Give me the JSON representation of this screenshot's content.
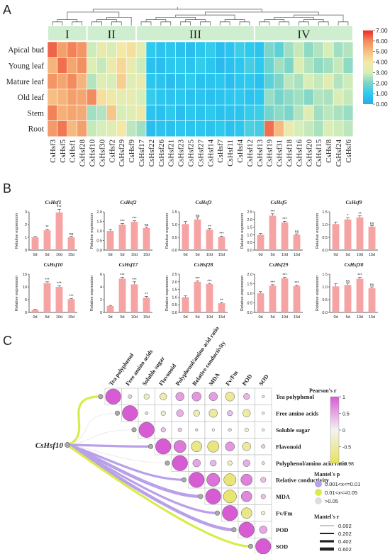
{
  "panels": {
    "a": "A",
    "b": "B",
    "c": "C"
  },
  "colors": {
    "bar": "#f6a3a3",
    "cluster_band": "#cfeecf",
    "mantel_sig1": "#b9a0e8",
    "mantel_sig2": "#d8ec4a",
    "mantel_ns": "#dddddd"
  },
  "chart_data": [
    {
      "type": "heatmap",
      "id": "heatmap",
      "cluster_labels": [
        "I",
        "II",
        "III",
        "IV"
      ],
      "cluster_sizes": [
        4,
        5,
        12,
        10
      ],
      "rows": [
        "Apical bud",
        "Young leaf",
        "Mature leaf",
        "Old leaf",
        "Stem",
        "Root"
      ],
      "columns": [
        "CsHsf3",
        "CsHsf5",
        "CsHsf1",
        "CsHsf28",
        "CsHsf10",
        "CsHsf30",
        "CsHsf2",
        "CsHsf29",
        "CsHsf9",
        "CsHsf17",
        "CsHsf22",
        "CsHsf26",
        "CsHsf21",
        "CsHsf23",
        "CsHsf25",
        "CsHsf27",
        "CsHsf14",
        "CsHsf7",
        "CsHsf11",
        "CsHsf4",
        "CsHsf12",
        "CsHsf13",
        "CsHsf19",
        "CsHsf31",
        "CsHsf18",
        "CsHsf16",
        "CsHsf20",
        "CsHsf15",
        "CsHsf8",
        "CsHsf24",
        "CsHsf6"
      ],
      "values": [
        [
          6.4,
          5.6,
          6.1,
          5.8,
          2.9,
          3.6,
          3.1,
          3.9,
          4.2,
          3.4,
          1.0,
          0.8,
          0.9,
          0.7,
          0.6,
          0.9,
          1.1,
          0.6,
          0.8,
          1.2,
          1.0,
          0.8,
          2.0,
          1.6,
          2.4,
          2.8,
          2.2,
          2.6,
          3.0,
          2.4,
          2.6
        ],
        [
          5.2,
          6.3,
          5.5,
          5.9,
          3.2,
          2.8,
          3.7,
          4.4,
          3.6,
          2.9,
          0.7,
          0.6,
          0.9,
          1.0,
          0.8,
          1.1,
          0.9,
          0.5,
          0.7,
          0.9,
          1.3,
          1.0,
          1.8,
          2.4,
          2.0,
          3.1,
          2.6,
          2.2,
          2.4,
          2.8,
          2.2
        ],
        [
          5.8,
          5.5,
          6.0,
          5.2,
          2.6,
          3.3,
          3.0,
          4.6,
          3.2,
          3.6,
          0.9,
          0.8,
          0.6,
          0.8,
          1.0,
          0.7,
          0.8,
          0.9,
          0.6,
          0.9,
          1.0,
          0.7,
          1.6,
          2.0,
          2.7,
          2.5,
          3.0,
          2.8,
          3.3,
          2.6,
          2.9
        ],
        [
          5.0,
          5.2,
          5.6,
          5.5,
          6.0,
          4.2,
          3.8,
          3.4,
          3.5,
          3.0,
          1.1,
          0.9,
          0.8,
          0.9,
          0.7,
          0.8,
          0.7,
          0.8,
          0.9,
          1.0,
          0.8,
          0.9,
          2.3,
          1.9,
          2.2,
          2.4,
          2.1,
          2.6,
          2.5,
          3.1,
          2.8
        ],
        [
          6.1,
          5.3,
          5.5,
          5.4,
          2.4,
          2.6,
          4.8,
          3.0,
          3.2,
          3.8,
          0.8,
          0.7,
          1.0,
          0.6,
          0.9,
          0.8,
          1.0,
          0.7,
          0.8,
          0.8,
          1.1,
          1.2,
          1.9,
          2.2,
          2.0,
          2.6,
          3.2,
          2.4,
          2.7,
          2.5,
          2.3
        ],
        [
          5.7,
          6.2,
          5.1,
          5.6,
          2.8,
          3.0,
          3.2,
          4.0,
          2.7,
          2.4,
          0.6,
          0.8,
          0.7,
          0.9,
          0.8,
          0.9,
          0.8,
          1.0,
          0.7,
          0.9,
          1.4,
          1.3,
          6.3,
          5.1,
          3.6,
          3.0,
          2.8,
          2.5,
          3.1,
          2.9,
          2.7
        ]
      ],
      "legend_ticks": [
        "0.00",
        "1.00",
        "2.00",
        "3.00",
        "4.00",
        "5.00",
        "6.00",
        "7.00"
      ],
      "vmin": 0,
      "vmax": 7
    },
    {
      "type": "bar",
      "id": "bars",
      "ylabel": "Relative expression",
      "categories": [
        "0d",
        "5d",
        "10d",
        "15d"
      ],
      "charts": [
        {
          "title": "CsHsf1",
          "values": [
            1.0,
            1.55,
            2.95,
            1.0
          ],
          "err": [
            0.06,
            0.08,
            0.25,
            0.07
          ],
          "ylim": [
            0,
            3
          ],
          "yticks": [
            "0",
            "1",
            "2",
            "3"
          ],
          "sig": [
            "",
            "**",
            "***",
            "ns"
          ]
        },
        {
          "title": "CsHsf2",
          "values": [
            1.0,
            1.33,
            1.48,
            1.15
          ],
          "err": [
            0.08,
            0.06,
            0.05,
            0.05
          ],
          "ylim": [
            0,
            2
          ],
          "yticks": [
            "0.0",
            "0.5",
            "1.0",
            "1.5",
            "2.0"
          ],
          "sig": [
            "",
            "***",
            "***",
            "ns"
          ]
        },
        {
          "title": "CsHsf3",
          "values": [
            1.02,
            1.2,
            0.8,
            0.52
          ],
          "err": [
            0.1,
            0.06,
            0.04,
            0.03
          ],
          "ylim": [
            0,
            1.5
          ],
          "yticks": [
            "0.0",
            "0.5",
            "1.0",
            "1.5"
          ],
          "sig": [
            "",
            "ns",
            "**",
            "***"
          ]
        },
        {
          "title": "CsHsf5",
          "values": [
            1.0,
            2.25,
            1.8,
            1.0
          ],
          "err": [
            0.08,
            0.12,
            0.08,
            0.06
          ],
          "ylim": [
            0,
            2.5
          ],
          "yticks": [
            "0.0",
            "0.5",
            "1.0",
            "1.5",
            "2.0",
            "2.5"
          ],
          "sig": [
            "",
            "***",
            "***",
            "ns"
          ]
        },
        {
          "title": "CsHsf9",
          "values": [
            1.02,
            1.2,
            1.28,
            0.92
          ],
          "err": [
            0.08,
            0.06,
            0.06,
            0.04
          ],
          "ylim": [
            0,
            1.5
          ],
          "yticks": [
            "0.0",
            "0.5",
            "1.0",
            "1.5"
          ],
          "sig": [
            "",
            "*",
            "**",
            "ns"
          ]
        },
        {
          "title": "CsHsf10",
          "values": [
            1.0,
            11.5,
            10.0,
            5.2
          ],
          "err": [
            0.2,
            0.5,
            0.5,
            0.3
          ],
          "ylim": [
            0,
            15
          ],
          "yticks": [
            "0",
            "5",
            "10",
            "15"
          ],
          "sig": [
            "",
            "***",
            "***",
            "***"
          ]
        },
        {
          "title": "CsHsf17",
          "values": [
            1.0,
            5.3,
            4.4,
            2.3
          ],
          "err": [
            0.1,
            0.2,
            0.4,
            0.2
          ],
          "ylim": [
            0,
            6
          ],
          "yticks": [
            "0",
            "2",
            "4",
            "6"
          ],
          "sig": [
            "",
            "***",
            "***",
            "**"
          ]
        },
        {
          "title": "CsHsf28",
          "values": [
            1.0,
            2.0,
            1.85,
            0.6
          ],
          "err": [
            0.08,
            0.05,
            0.05,
            0.05
          ],
          "ylim": [
            0,
            2.5
          ],
          "yticks": [
            "0.0",
            "0.5",
            "1.0",
            "1.5",
            "2.0",
            "2.5"
          ],
          "sig": [
            "",
            "***",
            "***",
            "**"
          ]
        },
        {
          "title": "CsHsf29",
          "values": [
            1.0,
            1.4,
            1.78,
            1.38
          ],
          "err": [
            0.08,
            0.05,
            0.05,
            0.05
          ],
          "ylim": [
            0,
            2
          ],
          "yticks": [
            "0.0",
            "0.5",
            "1.0",
            "1.5",
            "2.0"
          ],
          "sig": [
            "",
            "***",
            "***",
            "***"
          ]
        },
        {
          "title": "CsHsf30",
          "values": [
            1.02,
            1.08,
            1.32,
            0.95
          ],
          "err": [
            0.1,
            0.06,
            0.05,
            0.05
          ],
          "ylim": [
            0,
            1.5
          ],
          "yticks": [
            "0.0",
            "0.5",
            "1.0",
            "1.5"
          ],
          "sig": [
            "",
            "ns",
            "***",
            "ns"
          ]
        }
      ]
    },
    {
      "type": "heatmap",
      "id": "correlation",
      "source": "CsHsf10",
      "variables": [
        "Tea polyphenol",
        "Free amino acids",
        "Soluble sugar",
        "Flavonoid",
        "Polyphenol/amino acid ratio",
        "Relative conductivity",
        "MDA",
        "Fv/Fm",
        "POD",
        "SOD"
      ],
      "r_matrix": [
        [
          1.0,
          0.25,
          -0.35,
          -0.45,
          0.55,
          0.6,
          0.55,
          -0.6,
          0.4,
          0.12
        ],
        [
          0.25,
          1.0,
          0.2,
          -0.3,
          0.45,
          -0.4,
          -0.55,
          0.35,
          -0.5,
          0.1
        ],
        [
          -0.35,
          0.2,
          1.0,
          0.3,
          0.25,
          0.15,
          -0.15,
          0.2,
          -0.25,
          0.05
        ],
        [
          -0.45,
          -0.3,
          0.3,
          1.0,
          0.8,
          -0.7,
          -0.75,
          0.6,
          -0.55,
          0.25
        ],
        [
          0.55,
          0.45,
          0.25,
          0.8,
          1.0,
          0.5,
          0.4,
          -0.3,
          0.45,
          0.2
        ],
        [
          0.6,
          -0.4,
          0.15,
          -0.7,
          0.5,
          1.0,
          0.85,
          -0.8,
          0.75,
          0.35
        ],
        [
          0.55,
          -0.55,
          -0.15,
          -0.75,
          0.4,
          0.85,
          1.0,
          -0.85,
          0.7,
          0.3
        ],
        [
          -0.6,
          0.35,
          0.2,
          0.6,
          -0.3,
          -0.8,
          -0.85,
          1.0,
          -0.7,
          -0.25
        ],
        [
          0.4,
          -0.5,
          -0.25,
          -0.55,
          0.45,
          0.75,
          0.7,
          -0.7,
          1.0,
          0.5
        ],
        [
          0.12,
          0.1,
          0.05,
          0.25,
          0.2,
          0.35,
          0.3,
          -0.25,
          0.5,
          1.0
        ]
      ],
      "mantel": [
        {
          "target": "Tea polyphenol",
          "p_class": "0.01<x<=0.05",
          "r_class": 0.402
        },
        {
          "target": "Free amino acids",
          "p_class": ">0.05",
          "r_class": 0.002
        },
        {
          "target": "Soluble sugar",
          "p_class": ">0.05",
          "r_class": 0.002
        },
        {
          "target": "Flavonoid",
          "p_class": "0.001<x<=0.01",
          "r_class": 0.402
        },
        {
          "target": "Polyphenol/amino acid ratio",
          "p_class": ">0.05",
          "r_class": 0.002
        },
        {
          "target": "Relative conductivity",
          "p_class": "0.001<x<=0.01",
          "r_class": 0.402
        },
        {
          "target": "MDA",
          "p_class": "0.001<x<=0.01",
          "r_class": 0.602
        },
        {
          "target": "Fv/Fm",
          "p_class": "0.001<x<=0.01",
          "r_class": 0.402
        },
        {
          "target": "POD",
          "p_class": "0.001<x<=0.01",
          "r_class": 0.602
        },
        {
          "target": "SOD",
          "p_class": "0.01<x<=0.05",
          "r_class": 0.402
        }
      ],
      "legend_pearson": {
        "title": "Pearson's r",
        "ticks": [
          "1",
          "0.5",
          "0",
          "-0.5",
          "-0.98"
        ]
      },
      "legend_mantel_p": {
        "title": "Mantel's p",
        "items": [
          "0.001<x<=0.01",
          "0.01<x<=0.05",
          ">0.05"
        ]
      },
      "legend_mantel_r": {
        "title": "Mantel's r",
        "items": [
          "0.002",
          "0.202",
          "0.402",
          "0.602"
        ]
      }
    }
  ]
}
